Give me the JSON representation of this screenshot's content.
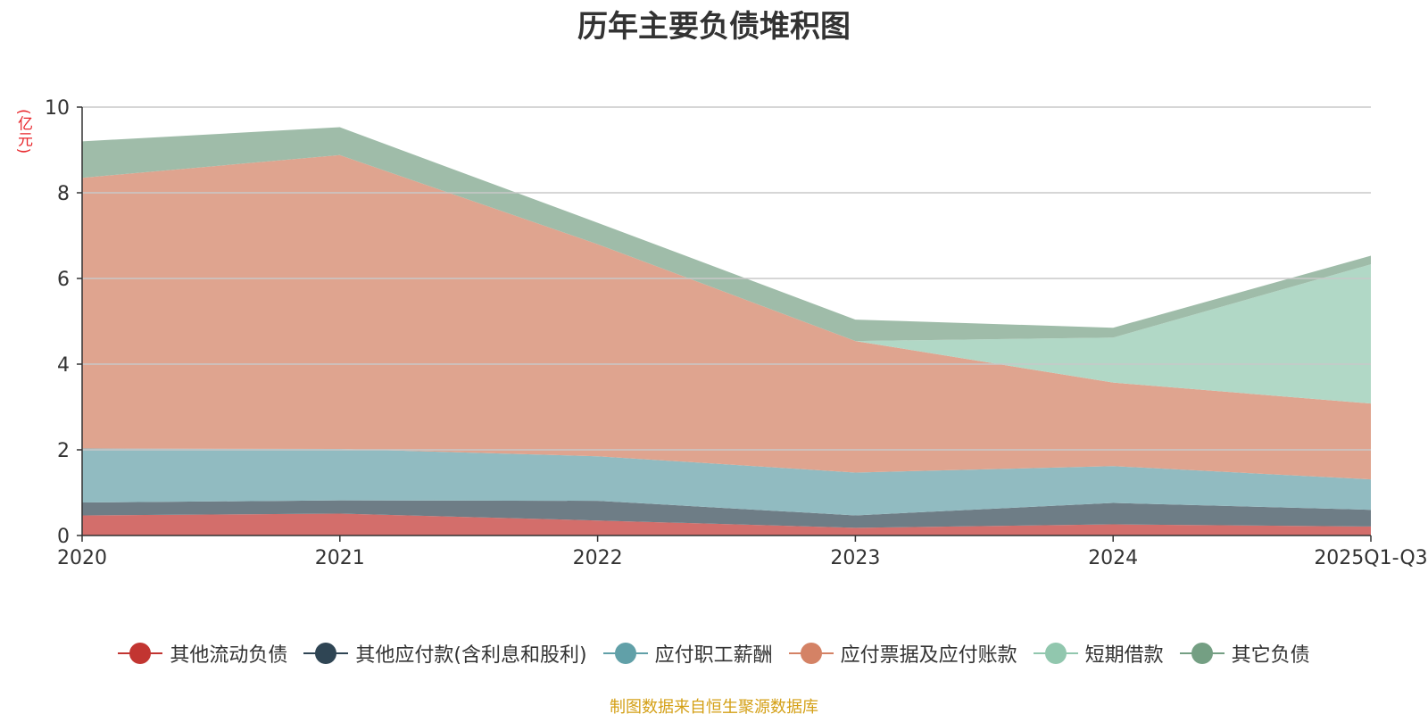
{
  "chart_data": {
    "type": "area",
    "stacked": true,
    "title": "历年主要负债堆积图",
    "ylabel": "(亿元)",
    "xlabel": "",
    "ylim": [
      0,
      10
    ],
    "yticks": [
      0,
      2,
      4,
      6,
      8,
      10
    ],
    "grid": true,
    "legend_position": "bottom",
    "categories": [
      "2020",
      "2021",
      "2022",
      "2023",
      "2024",
      "2025Q1-Q3"
    ],
    "series": [
      {
        "name": "其他流动负债",
        "color": "#c23531",
        "area_color": "#d36e6b",
        "values": [
          0.47,
          0.51,
          0.35,
          0.18,
          0.26,
          0.21
        ]
      },
      {
        "name": "其他应付款(含利息和股利)",
        "color": "#2f4554",
        "area_color": "#6e7d86",
        "values": [
          0.3,
          0.31,
          0.46,
          0.29,
          0.5,
          0.39
        ]
      },
      {
        "name": "应付职工薪酬",
        "color": "#61a0a8",
        "area_color": "#91bbc1",
        "values": [
          1.26,
          1.2,
          1.04,
          1.0,
          0.86,
          0.71
        ]
      },
      {
        "name": "应付票据及应付账款",
        "color": "#d48265",
        "area_color": "#dfa48f",
        "values": [
          6.32,
          6.86,
          4.95,
          3.07,
          1.95,
          1.77
        ]
      },
      {
        "name": "短期借款",
        "color": "#91c7ae",
        "area_color": "#b1d8c6",
        "values": [
          0.0,
          0.0,
          0.0,
          0.0,
          1.05,
          3.25
        ]
      },
      {
        "name": "其它负债",
        "color": "#749f83",
        "area_color": "#9fbca9",
        "values": [
          0.85,
          0.65,
          0.5,
          0.5,
          0.23,
          0.2
        ]
      }
    ]
  },
  "source_note": "制图数据来自恒生聚源数据库"
}
